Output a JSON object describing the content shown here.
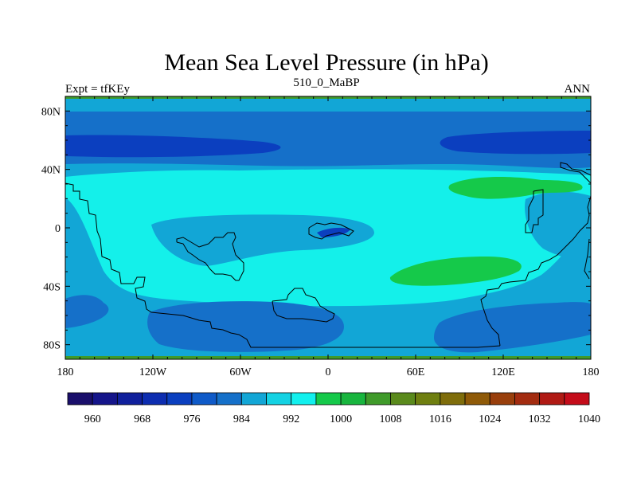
{
  "title": "Mean Sea Level Pressure (in hPa)",
  "left_label": "Expt = tfKEy",
  "center_label": "510_0_MaBP",
  "right_label": "ANN",
  "axes": {
    "x_ticks": [
      "180",
      "120W",
      "60W",
      "0",
      "60E",
      "120E",
      "180"
    ],
    "y_ticks": [
      "80N",
      "40N",
      "0",
      "40S",
      "80S"
    ]
  },
  "colorbar": {
    "colors": [
      "#1a0f6b",
      "#15158a",
      "#10209c",
      "#0d2db0",
      "#0b3fbf",
      "#0f5ac8",
      "#1570c9",
      "#12a6d6",
      "#14d2e3",
      "#12f0ee",
      "#15c94a",
      "#18b53e",
      "#3f9a2a",
      "#5a8a1c",
      "#6f7f10",
      "#7f6d0b",
      "#8f5a08",
      "#993f0c",
      "#a32c10",
      "#b01a14",
      "#c40c1a"
    ],
    "labels": [
      "960",
      "968",
      "976",
      "984",
      "992",
      "1000",
      "1008",
      "1016",
      "1024",
      "1032",
      "1040"
    ]
  },
  "field_colors": {
    "ocean_base": "#12a6d6",
    "high_1000": "#14f0ea",
    "low_984": "#1570c9",
    "low_976": "#0b3fbf",
    "high_1008": "#15c94a",
    "rim_green": "#3f9a2a"
  }
}
